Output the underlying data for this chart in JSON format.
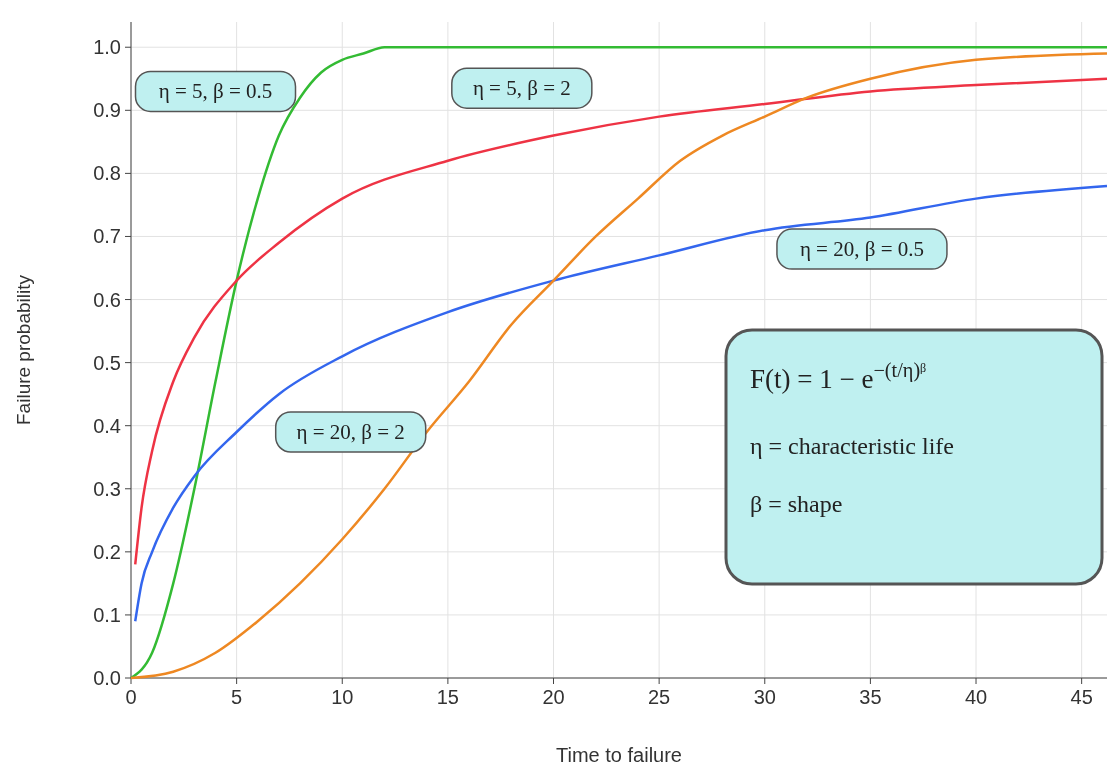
{
  "chart_data": {
    "type": "line",
    "xlabel": "Time to failure",
    "ylabel": "Failure probability",
    "xlim": [
      0,
      46.2
    ],
    "ylim": [
      0,
      1.04
    ],
    "xticks": [
      0,
      5,
      10,
      15,
      20,
      25,
      30,
      35,
      40,
      45
    ],
    "yticks": [
      {
        "value": 0,
        "label": "0.0"
      },
      0.1,
      0.2,
      0.3,
      0.4,
      0.5,
      0.6,
      0.7,
      0.8,
      0.9,
      {
        "value": 1,
        "label": "1.0"
      }
    ],
    "grid": true,
    "marker": "none",
    "line_style": "solid",
    "series": [
      {
        "color": "#33bb33",
        "x": [
          0,
          1,
          2,
          3,
          4,
          5,
          6,
          7,
          8,
          9,
          10,
          11,
          12,
          13,
          15,
          46.2
        ],
        "values": [
          0,
          0.04,
          0.15,
          0.3,
          0.47,
          0.63,
          0.76,
          0.86,
          0.92,
          0.96,
          0.98,
          0.99,
          1.0,
          1.0,
          1.0,
          1.0
        ]
      },
      {
        "color": "#ee3344",
        "x": [
          0.2,
          0.5,
          1,
          2,
          3,
          5,
          7,
          10,
          15,
          20,
          25,
          30,
          35,
          40,
          46.2
        ],
        "values": [
          0.18,
          0.27,
          0.36,
          0.47,
          0.54,
          0.63,
          0.69,
          0.76,
          0.82,
          0.86,
          0.89,
          0.91,
          0.93,
          0.94,
          0.95
        ]
      },
      {
        "color": "#3366ee",
        "x": [
          0.2,
          0.5,
          1,
          2,
          3,
          5,
          7,
          10,
          15,
          20,
          25,
          30,
          35,
          40,
          46.2
        ],
        "values": [
          0.09,
          0.15,
          0.2,
          0.27,
          0.32,
          0.39,
          0.45,
          0.51,
          0.58,
          0.63,
          0.67,
          0.71,
          0.73,
          0.76,
          0.78
        ]
      },
      {
        "color": "#ee8822",
        "x": [
          0,
          2,
          4,
          6,
          8,
          10,
          12,
          14,
          16,
          18,
          20,
          22,
          24,
          26,
          28,
          30,
          32,
          35,
          40,
          46.2
        ],
        "values": [
          0,
          0.01,
          0.04,
          0.09,
          0.15,
          0.22,
          0.3,
          0.39,
          0.47,
          0.56,
          0.63,
          0.7,
          0.76,
          0.82,
          0.86,
          0.89,
          0.92,
          0.95,
          0.98,
          0.99
        ]
      }
    ],
    "annotations": [
      "η = 5, β = 0.5",
      "η = 5, β = 2",
      "η = 20, β = 0.5",
      "η = 20, β = 2",
      "F(t) = 1 − e$^{−(t/η)ᵝ}$",
      "η = characteristic life",
      "β = shape"
    ]
  }
}
